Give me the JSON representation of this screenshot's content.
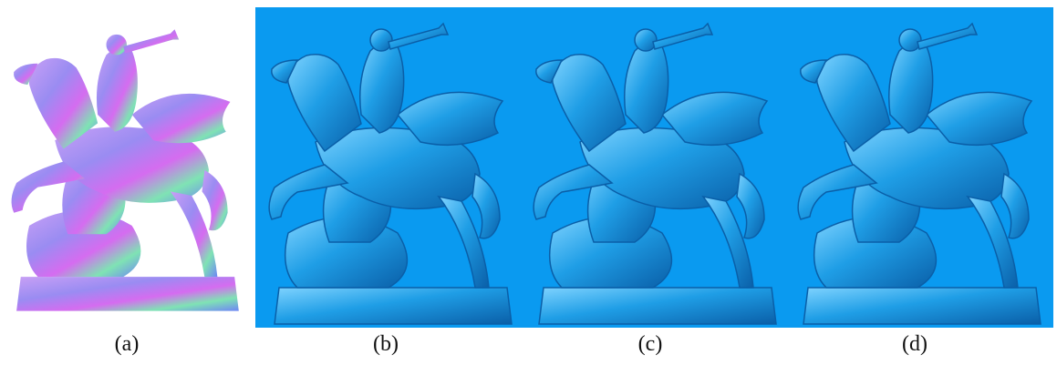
{
  "colors": {
    "background": "#ffffff",
    "render_background": "#0a9af0",
    "render_surface": "#1f9ee6",
    "render_highlight": "#7fd3ff",
    "render_shadow": "#0a5fa8",
    "normal_map_purple": "#9a8cf2",
    "normal_map_magenta": "#d56cf0",
    "normal_map_green": "#7fe3b4",
    "normal_map_blue": "#6f86f5"
  },
  "panels": [
    {
      "id": "a",
      "caption": "(a)",
      "description_icon": "normal-map-statue-icon"
    },
    {
      "id": "b",
      "caption": "(b)",
      "description_icon": "rendered-statue-icon"
    },
    {
      "id": "c",
      "caption": "(c)",
      "description_icon": "rendered-statue-icon"
    },
    {
      "id": "d",
      "caption": "(d)",
      "description_icon": "rendered-statue-icon"
    }
  ]
}
